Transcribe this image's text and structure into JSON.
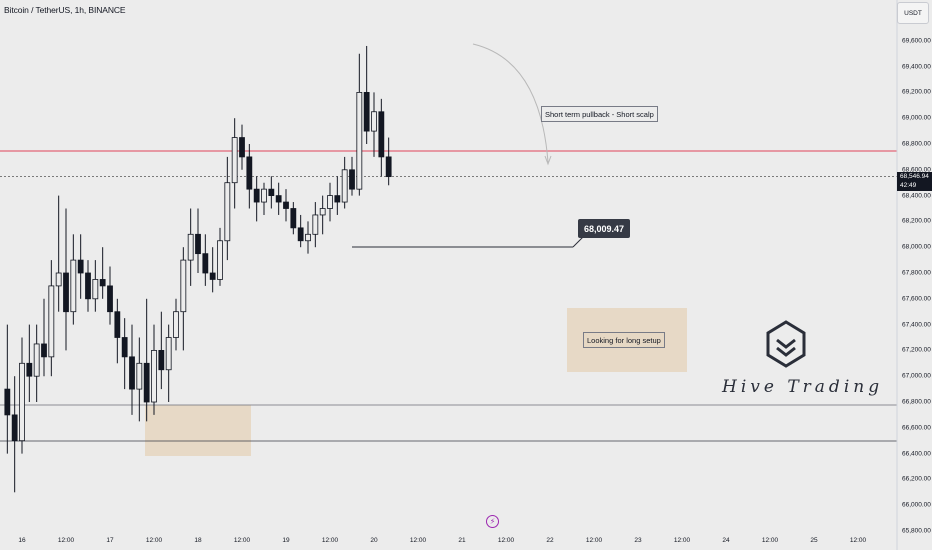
{
  "header": {
    "title": "Bitcoin / TetherUS, 1h, BINANCE"
  },
  "axis": {
    "currency": "USDT",
    "price_ticks": [
      "69,600.00",
      "69,400.00",
      "69,200.00",
      "69,000.00",
      "68,800.00",
      "68,600.00",
      "68,400.00",
      "68,200.00",
      "68,000.00",
      "67,800.00",
      "67,600.00",
      "67,400.00",
      "67,200.00",
      "67,000.00",
      "66,800.00",
      "66,600.00",
      "66,400.00",
      "66,200.00",
      "66,000.00",
      "65,800.00"
    ],
    "price_tick_values": [
      69600,
      69400,
      69200,
      69000,
      68800,
      68600,
      68400,
      68200,
      68000,
      67800,
      67600,
      67400,
      67200,
      67000,
      66800,
      66600,
      66400,
      66200,
      66000,
      65800
    ],
    "time_labels": [
      "16",
      "12:00",
      "17",
      "12:00",
      "18",
      "12:00",
      "19",
      "12:00",
      "20",
      "12:00",
      "21",
      "12:00",
      "22",
      "12:00",
      "23",
      "12:00",
      "24",
      "12:00",
      "25",
      "12:00"
    ],
    "time_label_hours": [
      0,
      12,
      24,
      36,
      48,
      60,
      72,
      84,
      96,
      108,
      120,
      132,
      144,
      156,
      168,
      180,
      192,
      204,
      216,
      228
    ],
    "current_price": "68,546.94",
    "countdown": "42:49",
    "current_price_value": 68546.94
  },
  "annotations": {
    "short_label": "Short term pullback - Short scalp",
    "long_label": "Looking for long setup",
    "level_label": "68,009.47",
    "level_value": 68009.47,
    "event_icon": "lightning-icon"
  },
  "branding": {
    "name": "Hive Trading",
    "logo_icon": "hive-logo-icon"
  },
  "colors": {
    "background": "#ececec",
    "candle": "#131722",
    "resistance_line": "#e0435a",
    "zone_fill": "#e6d6c0",
    "level_tag": "#363a45",
    "event_icon": "#9c27b0"
  },
  "chart_data": {
    "type": "candlestick",
    "title": "Bitcoin / TetherUS, 1h, BINANCE",
    "symbol": "BTCUSDT",
    "interval": "1h",
    "x_unit": "hours since 16 00:00",
    "ylim": [
      65800,
      69650
    ],
    "candles_approx": [
      {
        "t": -4,
        "o": 66900,
        "h": 67400,
        "l": 66400,
        "c": 66700
      },
      {
        "t": -2,
        "o": 66700,
        "h": 67000,
        "l": 66100,
        "c": 66500
      },
      {
        "t": 0,
        "o": 66500,
        "h": 67300,
        "l": 66400,
        "c": 67100
      },
      {
        "t": 2,
        "o": 67100,
        "h": 67400,
        "l": 66800,
        "c": 67000
      },
      {
        "t": 4,
        "o": 67000,
        "h": 67400,
        "l": 66800,
        "c": 67250
      },
      {
        "t": 6,
        "o": 67250,
        "h": 67600,
        "l": 67000,
        "c": 67150
      },
      {
        "t": 8,
        "o": 67150,
        "h": 67900,
        "l": 67000,
        "c": 67700
      },
      {
        "t": 10,
        "o": 67700,
        "h": 68400,
        "l": 67500,
        "c": 67800
      },
      {
        "t": 12,
        "o": 67800,
        "h": 68300,
        "l": 67200,
        "c": 67500
      },
      {
        "t": 14,
        "o": 67500,
        "h": 68100,
        "l": 67400,
        "c": 67900
      },
      {
        "t": 16,
        "o": 67900,
        "h": 68100,
        "l": 67600,
        "c": 67800
      },
      {
        "t": 18,
        "o": 67800,
        "h": 67900,
        "l": 67500,
        "c": 67600
      },
      {
        "t": 20,
        "o": 67600,
        "h": 67900,
        "l": 67500,
        "c": 67750
      },
      {
        "t": 22,
        "o": 67750,
        "h": 68000,
        "l": 67600,
        "c": 67700
      },
      {
        "t": 24,
        "o": 67700,
        "h": 67850,
        "l": 67400,
        "c": 67500
      },
      {
        "t": 26,
        "o": 67500,
        "h": 67600,
        "l": 67100,
        "c": 67300
      },
      {
        "t": 28,
        "o": 67300,
        "h": 67450,
        "l": 66900,
        "c": 67150
      },
      {
        "t": 30,
        "o": 67150,
        "h": 67400,
        "l": 66700,
        "c": 66900
      },
      {
        "t": 32,
        "o": 66900,
        "h": 67300,
        "l": 66650,
        "c": 67100
      },
      {
        "t": 34,
        "o": 67100,
        "h": 67600,
        "l": 66650,
        "c": 66800
      },
      {
        "t": 36,
        "o": 66800,
        "h": 67400,
        "l": 66700,
        "c": 67200
      },
      {
        "t": 38,
        "o": 67200,
        "h": 67500,
        "l": 66900,
        "c": 67050
      },
      {
        "t": 40,
        "o": 67050,
        "h": 67400,
        "l": 66800,
        "c": 67300
      },
      {
        "t": 42,
        "o": 67300,
        "h": 67600,
        "l": 67200,
        "c": 67500
      },
      {
        "t": 44,
        "o": 67500,
        "h": 68000,
        "l": 67200,
        "c": 67900
      },
      {
        "t": 46,
        "o": 67900,
        "h": 68300,
        "l": 67700,
        "c": 68100
      },
      {
        "t": 48,
        "o": 68100,
        "h": 68300,
        "l": 67800,
        "c": 67950
      },
      {
        "t": 50,
        "o": 67950,
        "h": 68100,
        "l": 67700,
        "c": 67800
      },
      {
        "t": 52,
        "o": 67800,
        "h": 68000,
        "l": 67650,
        "c": 67750
      },
      {
        "t": 54,
        "o": 67750,
        "h": 68150,
        "l": 67700,
        "c": 68050
      },
      {
        "t": 56,
        "o": 68050,
        "h": 68700,
        "l": 67900,
        "c": 68500
      },
      {
        "t": 58,
        "o": 68500,
        "h": 69000,
        "l": 68300,
        "c": 68850
      },
      {
        "t": 60,
        "o": 68850,
        "h": 68950,
        "l": 68600,
        "c": 68700
      },
      {
        "t": 62,
        "o": 68700,
        "h": 68800,
        "l": 68300,
        "c": 68450
      },
      {
        "t": 64,
        "o": 68450,
        "h": 68550,
        "l": 68200,
        "c": 68350
      },
      {
        "t": 66,
        "o": 68350,
        "h": 68500,
        "l": 68250,
        "c": 68450
      },
      {
        "t": 68,
        "o": 68450,
        "h": 68550,
        "l": 68300,
        "c": 68400
      },
      {
        "t": 70,
        "o": 68400,
        "h": 68500,
        "l": 68250,
        "c": 68350
      },
      {
        "t": 72,
        "o": 68350,
        "h": 68450,
        "l": 68200,
        "c": 68300
      },
      {
        "t": 74,
        "o": 68300,
        "h": 68350,
        "l": 68100,
        "c": 68150
      },
      {
        "t": 76,
        "o": 68150,
        "h": 68250,
        "l": 68000,
        "c": 68050
      },
      {
        "t": 78,
        "o": 68050,
        "h": 68200,
        "l": 67950,
        "c": 68100
      },
      {
        "t": 80,
        "o": 68100,
        "h": 68350,
        "l": 68000,
        "c": 68250
      },
      {
        "t": 82,
        "o": 68250,
        "h": 68400,
        "l": 68100,
        "c": 68300
      },
      {
        "t": 84,
        "o": 68300,
        "h": 68500,
        "l": 68200,
        "c": 68400
      },
      {
        "t": 86,
        "o": 68400,
        "h": 68550,
        "l": 68250,
        "c": 68350
      },
      {
        "t": 88,
        "o": 68350,
        "h": 68700,
        "l": 68300,
        "c": 68600
      },
      {
        "t": 90,
        "o": 68600,
        "h": 68700,
        "l": 68400,
        "c": 68450
      },
      {
        "t": 92,
        "o": 68450,
        "h": 69500,
        "l": 68400,
        "c": 69200
      },
      {
        "t": 94,
        "o": 69200,
        "h": 69560,
        "l": 68800,
        "c": 68900
      },
      {
        "t": 96,
        "o": 68900,
        "h": 69200,
        "l": 68700,
        "c": 69050
      },
      {
        "t": 98,
        "o": 69050,
        "h": 69150,
        "l": 68550,
        "c": 68700
      },
      {
        "t": 100,
        "o": 68700,
        "h": 68850,
        "l": 68480,
        "c": 68547
      }
    ]
  }
}
